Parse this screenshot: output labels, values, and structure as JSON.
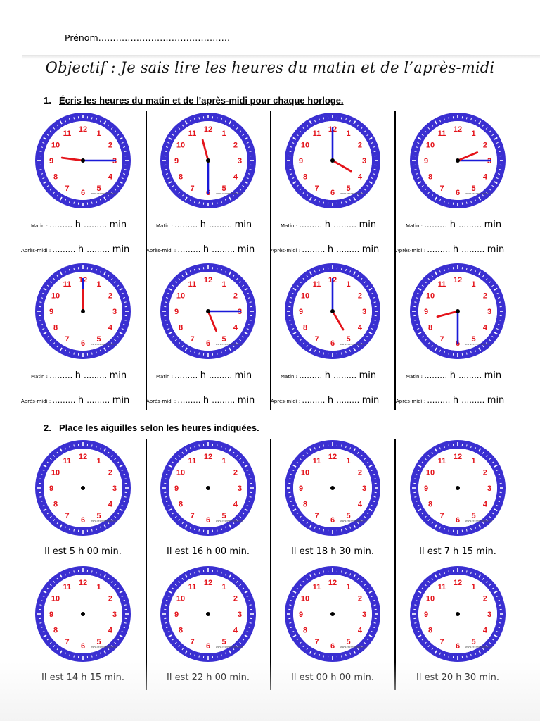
{
  "header": {
    "prenom": "Prénom………………………………………",
    "objective": "Objectif : Je sais lire les heures du matin et de l’après-midi"
  },
  "section1": {
    "number": "1.",
    "title": "Écris les heures du matin et de l’après-midi pour chaque horloge.",
    "clocks": [
      {
        "hour": 9,
        "minute": 15
      },
      {
        "hour": 11,
        "minute": 30
      },
      {
        "hour": 4,
        "minute": 0
      },
      {
        "hour": 2,
        "minute": 15
      },
      {
        "hour": 12,
        "minute": 0
      },
      {
        "hour": 5,
        "minute": 15
      },
      {
        "hour": 5,
        "minute": 0
      },
      {
        "hour": 8,
        "minute": 30
      }
    ],
    "answer": {
      "matin_label": "Matin :",
      "apres_midi_label": "Après-midi :",
      "blank": "………",
      "h": "h",
      "min": "min"
    }
  },
  "section2": {
    "number": "2.",
    "title": "Place les aiguilles selon les heures indiquées.",
    "captions": [
      "Il est 5 h 00 min.",
      "Il est 16 h 00 min.",
      "Il est 18 h 30 min.",
      "Il est 7 h 15 min.",
      "Il est 14 h 15 min.",
      "Il est 22 h 00 min.",
      "Il est 00 h 00 min.",
      "Il est 20 h 30 min."
    ]
  },
  "clock_face": {
    "numbers": [
      "12",
      "1",
      "2",
      "3",
      "4",
      "5",
      "6",
      "7",
      "8",
      "9",
      "10",
      "11"
    ],
    "watermark": "www.recreenfamille.fr",
    "rim_color": "#3a2fd1",
    "number_color": "#e4141b",
    "hour_hand_color": "#e4141b",
    "minute_hand_color": "#1a1ad8"
  }
}
